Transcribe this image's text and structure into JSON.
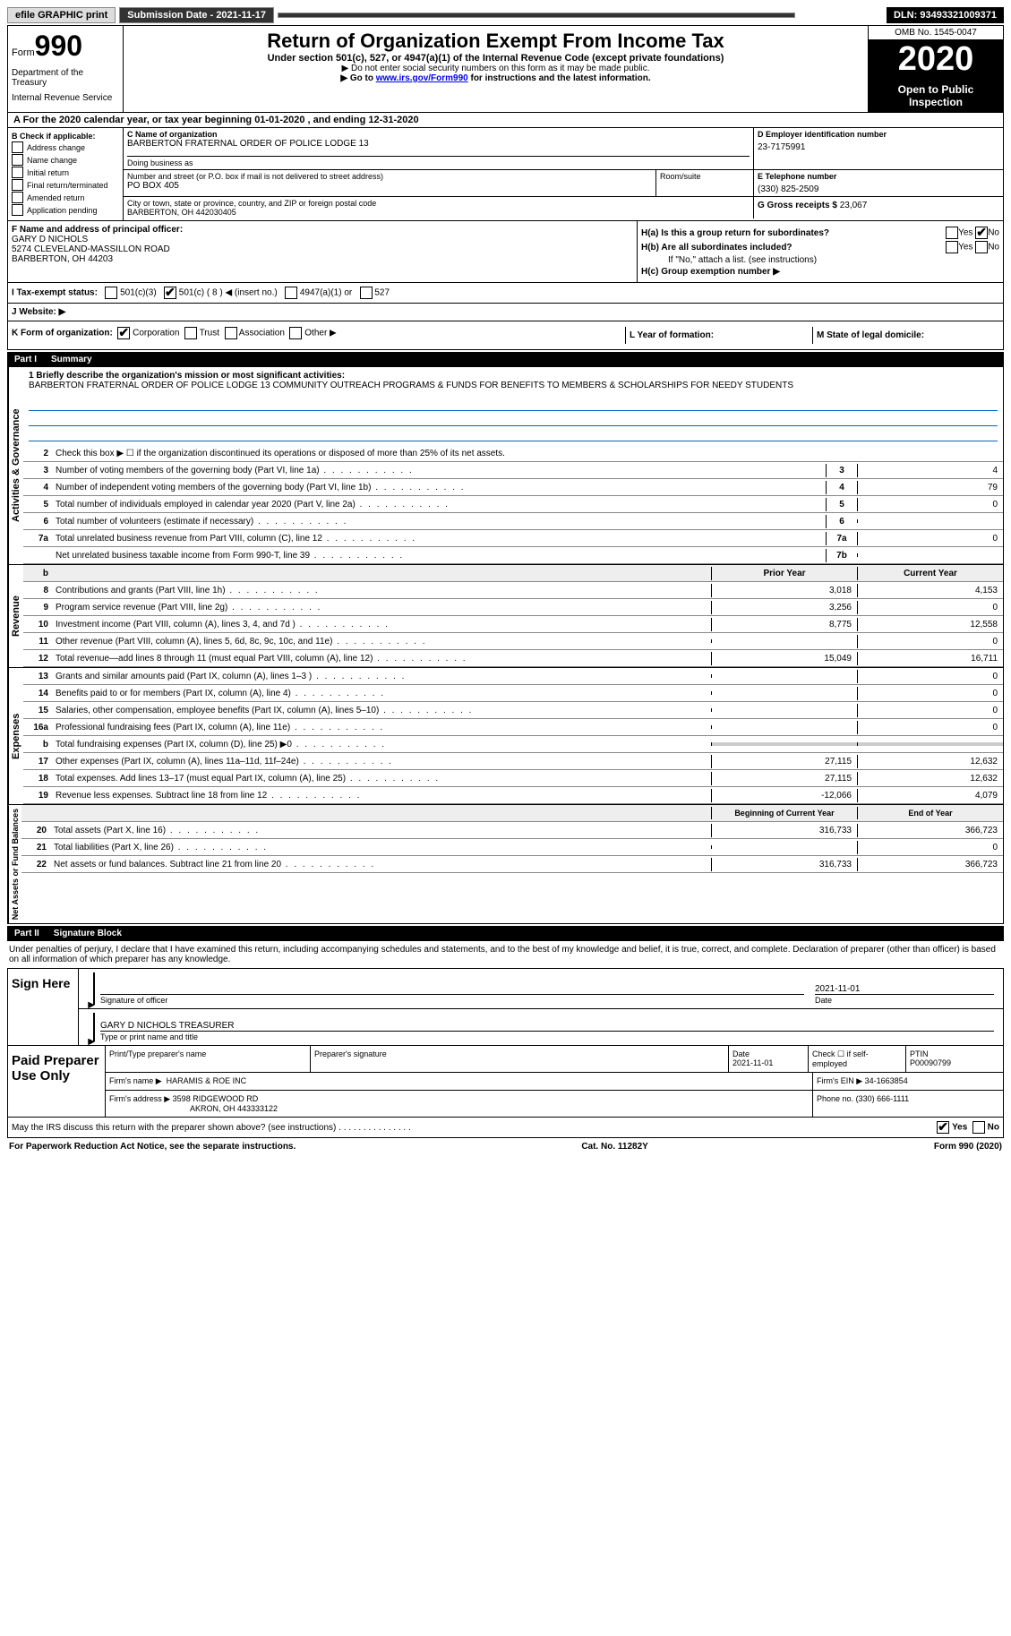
{
  "topbar": {
    "efile": "efile GRAPHIC print",
    "submission_label": "Submission Date - 2021-11-17",
    "dln": "DLN: 93493321009371"
  },
  "header": {
    "form_prefix": "Form",
    "form_number": "990",
    "dept1": "Department of the Treasury",
    "dept2": "Internal Revenue Service",
    "title": "Return of Organization Exempt From Income Tax",
    "subtitle": "Under section 501(c), 527, or 4947(a)(1) of the Internal Revenue Code (except private foundations)",
    "instr1": "▶ Do not enter social security numbers on this form as it may be made public.",
    "instr2_pre": "▶ Go to ",
    "instr2_link": "www.irs.gov/Form990",
    "instr2_post": " for instructions and the latest information.",
    "omb": "OMB No. 1545-0047",
    "year": "2020",
    "otp": "Open to Public Inspection"
  },
  "period": "A For the 2020 calendar year, or tax year beginning 01-01-2020   , and ending 12-31-2020",
  "sectionB": {
    "title": "B Check if applicable:",
    "opts": [
      "Address change",
      "Name change",
      "Initial return",
      "Final return/terminated",
      "Amended return",
      "Application pending"
    ]
  },
  "sectionC": {
    "name_label": "C Name of organization",
    "name": "BARBERTON FRATERNAL ORDER OF POLICE LODGE 13",
    "dba_label": "Doing business as",
    "addr_label": "Number and street (or P.O. box if mail is not delivered to street address)",
    "addr": "PO BOX 405",
    "room_label": "Room/suite",
    "city_label": "City or town, state or province, country, and ZIP or foreign postal code",
    "city": "BARBERTON, OH  442030405"
  },
  "sectionD": {
    "label": "D Employer identification number",
    "value": "23-7175991"
  },
  "sectionE": {
    "label": "E Telephone number",
    "value": "(330) 825-2509"
  },
  "sectionG": {
    "label": "G Gross receipts $",
    "value": "23,067"
  },
  "sectionF": {
    "label": "F Name and address of principal officer:",
    "name": "GARY D NICHOLS",
    "addr1": "5274 CLEVELAND-MASSILLON ROAD",
    "addr2": "BARBERTON, OH  44203"
  },
  "sectionH": {
    "a_label": "H(a)  Is this a group return for subordinates?",
    "b_label": "H(b)  Are all subordinates included?",
    "b_note": "If \"No,\" attach a list. (see instructions)",
    "c_label": "H(c)  Group exemption number ▶",
    "yes": "Yes",
    "no": "No"
  },
  "sectionI": {
    "label": "I   Tax-exempt status:",
    "o1": "501(c)(3)",
    "o2": "501(c) ( 8 ) ◀ (insert no.)",
    "o3": "4947(a)(1) or",
    "o4": "527"
  },
  "sectionJ": {
    "label": "J   Website: ▶"
  },
  "sectionK": {
    "label": "K Form of organization:",
    "o1": "Corporation",
    "o2": "Trust",
    "o3": "Association",
    "o4": "Other ▶"
  },
  "sectionL": {
    "label": "L Year of formation:"
  },
  "sectionM": {
    "label": "M State of legal domicile:"
  },
  "part1": {
    "num": "Part I",
    "title": "Summary"
  },
  "governance": {
    "label": "Activities & Governance",
    "line1_label": "1   Briefly describe the organization's mission or most significant activities:",
    "line1_text": "BARBERTON FRATERNAL ORDER OF POLICE LODGE 13 COMMUNITY OUTREACH PROGRAMS & FUNDS FOR BENEFITS TO MEMBERS & SCHOLARSHIPS FOR NEEDY STUDENTS",
    "line2": "Check this box ▶ ☐  if the organization discontinued its operations or disposed of more than 25% of its net assets.",
    "rows": [
      {
        "n": "3",
        "t": "Number of voting members of the governing body (Part VI, line 1a)",
        "col": "3",
        "val": "4"
      },
      {
        "n": "4",
        "t": "Number of independent voting members of the governing body (Part VI, line 1b)",
        "col": "4",
        "val": "79"
      },
      {
        "n": "5",
        "t": "Total number of individuals employed in calendar year 2020 (Part V, line 2a)",
        "col": "5",
        "val": "0"
      },
      {
        "n": "6",
        "t": "Total number of volunteers (estimate if necessary)",
        "col": "6",
        "val": ""
      },
      {
        "n": "7a",
        "t": "Total unrelated business revenue from Part VIII, column (C), line 12",
        "col": "7a",
        "val": "0"
      },
      {
        "n": "",
        "t": "Net unrelated business taxable income from Form 990-T, line 39",
        "col": "7b",
        "val": ""
      }
    ]
  },
  "revenue": {
    "label": "Revenue",
    "hdr_prior": "Prior Year",
    "hdr_current": "Current Year",
    "rows": [
      {
        "n": "8",
        "t": "Contributions and grants (Part VIII, line 1h)",
        "p": "3,018",
        "c": "4,153"
      },
      {
        "n": "9",
        "t": "Program service revenue (Part VIII, line 2g)",
        "p": "3,256",
        "c": "0"
      },
      {
        "n": "10",
        "t": "Investment income (Part VIII, column (A), lines 3, 4, and 7d )",
        "p": "8,775",
        "c": "12,558"
      },
      {
        "n": "11",
        "t": "Other revenue (Part VIII, column (A), lines 5, 6d, 8c, 9c, 10c, and 11e)",
        "p": "",
        "c": "0"
      },
      {
        "n": "12",
        "t": "Total revenue—add lines 8 through 11 (must equal Part VIII, column (A), line 12)",
        "p": "15,049",
        "c": "16,711"
      }
    ]
  },
  "expenses": {
    "label": "Expenses",
    "rows": [
      {
        "n": "13",
        "t": "Grants and similar amounts paid (Part IX, column (A), lines 1–3 )",
        "p": "",
        "c": "0"
      },
      {
        "n": "14",
        "t": "Benefits paid to or for members (Part IX, column (A), line 4)",
        "p": "",
        "c": "0"
      },
      {
        "n": "15",
        "t": "Salaries, other compensation, employee benefits (Part IX, column (A), lines 5–10)",
        "p": "",
        "c": "0"
      },
      {
        "n": "16a",
        "t": "Professional fundraising fees (Part IX, column (A), line 11e)",
        "p": "",
        "c": "0"
      },
      {
        "n": "b",
        "t": "Total fundraising expenses (Part IX, column (D), line 25) ▶0",
        "p": "shade",
        "c": "shade"
      },
      {
        "n": "17",
        "t": "Other expenses (Part IX, column (A), lines 11a–11d, 11f–24e)",
        "p": "27,115",
        "c": "12,632"
      },
      {
        "n": "18",
        "t": "Total expenses. Add lines 13–17 (must equal Part IX, column (A), line 25)",
        "p": "27,115",
        "c": "12,632"
      },
      {
        "n": "19",
        "t": "Revenue less expenses. Subtract line 18 from line 12",
        "p": "-12,066",
        "c": "4,079"
      }
    ]
  },
  "netassets": {
    "label": "Net Assets or Fund Balances",
    "hdr_begin": "Beginning of Current Year",
    "hdr_end": "End of Year",
    "rows": [
      {
        "n": "20",
        "t": "Total assets (Part X, line 16)",
        "p": "316,733",
        "c": "366,723"
      },
      {
        "n": "21",
        "t": "Total liabilities (Part X, line 26)",
        "p": "",
        "c": "0"
      },
      {
        "n": "22",
        "t": "Net assets or fund balances. Subtract line 21 from line 20",
        "p": "316,733",
        "c": "366,723"
      }
    ]
  },
  "part2": {
    "num": "Part II",
    "title": "Signature Block"
  },
  "sig": {
    "declaration": "Under penalties of perjury, I declare that I have examined this return, including accompanying schedules and statements, and to the best of my knowledge and belief, it is true, correct, and complete. Declaration of preparer (other than officer) is based on all information of which preparer has any knowledge.",
    "sign_here": "Sign Here",
    "date": "2021-11-01",
    "sig_label": "Signature of officer",
    "date_label": "Date",
    "name": "GARY D NICHOLS  TREASURER",
    "name_label": "Type or print name and title"
  },
  "preparer": {
    "title": "Paid Preparer Use Only",
    "r1": {
      "c1_label": "Print/Type preparer's name",
      "c2_label": "Preparer's signature",
      "c3_label": "Date",
      "c3_val": "2021-11-01",
      "c4_label": "Check ☐ if self-employed",
      "c5_label": "PTIN",
      "c5_val": "P00090799"
    },
    "r2": {
      "label": "Firm's name   ▶",
      "val": "HARAMIS & ROE INC",
      "ein_label": "Firm's EIN ▶",
      "ein": "34-1663854"
    },
    "r3": {
      "label": "Firm's address ▶",
      "val1": "3598 RIDGEWOOD RD",
      "val2": "AKRON, OH  443333122",
      "phone_label": "Phone no.",
      "phone": "(330) 666-1111"
    }
  },
  "footer": {
    "q": "May the IRS discuss this return with the preparer shown above? (see instructions)",
    "yes": "Yes",
    "no": "No",
    "pra": "For Paperwork Reduction Act Notice, see the separate instructions.",
    "cat": "Cat. No. 11282Y",
    "form": "Form 990 (2020)"
  }
}
